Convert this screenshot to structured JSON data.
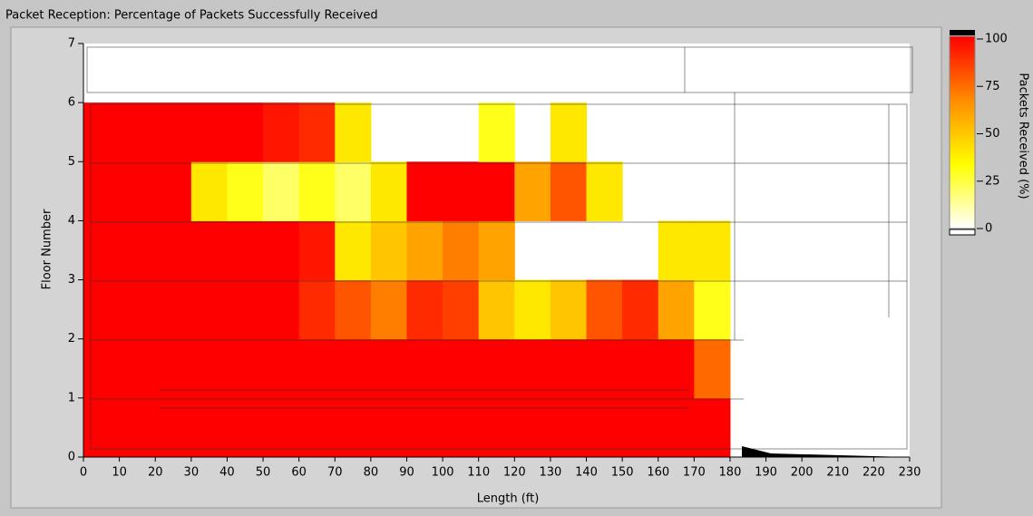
{
  "chart_data": {
    "type": "heatmap",
    "title": "Packet Reception: Percentage of Packets Successfully Received",
    "x_label": "Length (ft)",
    "y_label": "Floor Number",
    "colorbar_label": "Packets Received (%)",
    "x_edges": [
      0,
      10,
      20,
      30,
      40,
      50,
      60,
      70,
      80,
      90,
      100,
      110,
      120,
      130,
      140,
      150,
      160,
      170,
      180
    ],
    "y_edges": [
      0,
      1,
      2,
      3,
      4,
      5,
      6
    ],
    "values": [
      [
        100,
        100,
        100,
        100,
        100,
        100,
        100,
        100,
        100,
        100,
        100,
        100,
        100,
        100,
        100,
        100,
        100,
        100
      ],
      [
        100,
        100,
        100,
        100,
        100,
        100,
        100,
        100,
        100,
        100,
        100,
        100,
        100,
        100,
        100,
        100,
        100,
        75
      ],
      [
        100,
        100,
        100,
        100,
        100,
        100,
        90,
        80,
        70,
        90,
        85,
        50,
        40,
        50,
        80,
        90,
        60,
        30
      ],
      [
        100,
        100,
        100,
        100,
        100,
        100,
        95,
        40,
        50,
        60,
        70,
        60,
        null,
        null,
        null,
        null,
        40,
        40
      ],
      [
        100,
        100,
        100,
        40,
        30,
        20,
        30,
        20,
        40,
        100,
        100,
        100,
        60,
        80,
        40,
        null,
        null,
        null
      ],
      [
        100,
        100,
        100,
        100,
        100,
        95,
        90,
        40,
        null,
        null,
        null,
        30,
        null,
        40,
        null,
        null,
        null,
        null
      ]
    ],
    "colormap": [
      "#ffffff",
      "#ffff00",
      "#ff8c00",
      "#ff0000"
    ],
    "clim": [
      0,
      100
    ],
    "cticks": [
      0,
      25,
      50,
      75,
      100
    ],
    "xlim": [
      0,
      230
    ],
    "xticks": [
      0,
      10,
      20,
      30,
      40,
      50,
      60,
      70,
      80,
      90,
      100,
      110,
      120,
      130,
      140,
      150,
      160,
      170,
      180,
      190,
      200,
      210,
      220,
      230
    ],
    "ylim": [
      0,
      7
    ],
    "yticks": [
      0,
      1,
      2,
      3,
      4,
      5,
      6,
      7
    ]
  }
}
